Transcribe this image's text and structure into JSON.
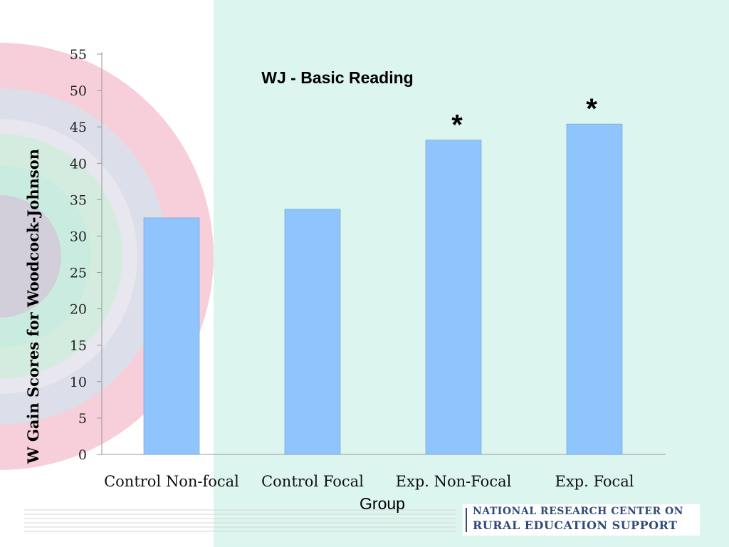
{
  "chart_data": {
    "type": "bar",
    "title": "WJ - Basic Reading",
    "xlabel": "Group",
    "ylabel": "W Gain Scores for Woodcock-Johnson",
    "categories": [
      "Control Non-focal",
      "Control Focal",
      "Exp. Non-Focal",
      "Exp. Focal"
    ],
    "values": [
      32.5,
      33.7,
      43.2,
      45.4
    ],
    "ylim": [
      0,
      55
    ],
    "yticks": [
      0,
      5,
      10,
      15,
      20,
      25,
      30,
      35,
      40,
      45,
      50,
      55
    ],
    "annotations": [
      "",
      "",
      "*",
      "*"
    ],
    "bar_color": "#8fc4fc",
    "grid": false,
    "legend": "none"
  },
  "branding": {
    "line1": "NATIONAL RESEARCH CENTER ON",
    "line2": "RURAL EDUCATION SUPPORT",
    "color": "#2f4a7a"
  }
}
